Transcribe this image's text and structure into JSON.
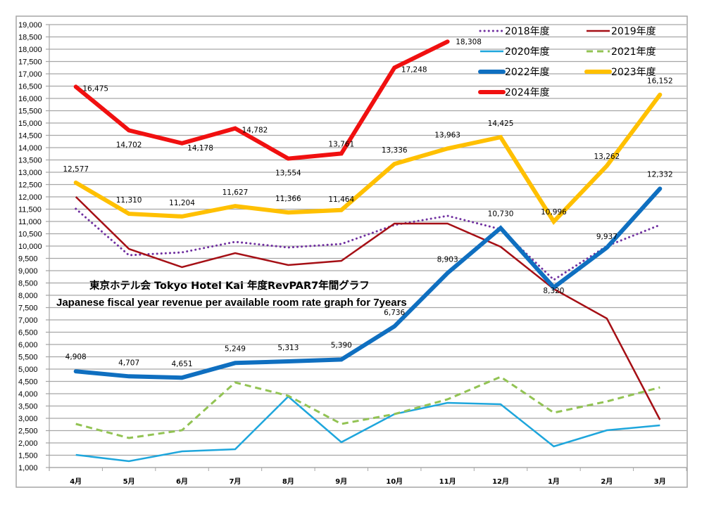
{
  "chart_data": {
    "type": "line",
    "title": "東京ホテル会 Tokyo Hotel Kai  年度RevPAR7年間グラフ",
    "subtitle": "Japanese fiscal year revenue per available room rate graph for 7years",
    "xlabel": "",
    "ylabel": "",
    "ylim": [
      1000,
      19000
    ],
    "ytick_step": 500,
    "yticks": [
      "1,000",
      "1,500",
      "2,000",
      "2,500",
      "3,000",
      "3,500",
      "4,000",
      "4,500",
      "5,000",
      "5,500",
      "6,000",
      "6,500",
      "7,000",
      "7,500",
      "8,000",
      "8,500",
      "9,000",
      "9,500",
      "10,000",
      "10,500",
      "11,000",
      "11,500",
      "12,000",
      "12,500",
      "13,000",
      "13,500",
      "14,000",
      "14,500",
      "15,000",
      "15,500",
      "16,000",
      "16,500",
      "17,000",
      "17,500",
      "18,000",
      "18,500",
      "19,000"
    ],
    "grid": true,
    "legend_position": "top-right",
    "categories": [
      "4月",
      "5月",
      "6月",
      "7月",
      "8月",
      "9月",
      "10月",
      "11月",
      "12月",
      "1月",
      "2月",
      "3月"
    ],
    "series": [
      {
        "name": "2018年度",
        "color": "#7030a0",
        "style": "dotted",
        "weight": "thin",
        "values": [
          11514,
          9629,
          9743,
          10171,
          9943,
          10086,
          10857,
          11229,
          10686,
          8629,
          10000,
          10857
        ],
        "labels": null
      },
      {
        "name": "2019年度",
        "color": "#a50f15",
        "style": "solid",
        "weight": "thin",
        "values": [
          12000,
          9886,
          9143,
          9714,
          9229,
          9400,
          10914,
          10914,
          9971,
          8257,
          7057,
          2943
        ],
        "labels": null
      },
      {
        "name": "2020年度",
        "color": "#1ea6dc",
        "style": "solid",
        "weight": "thin",
        "values": [
          1514,
          1257,
          1657,
          1743,
          3886,
          2029,
          3171,
          3629,
          3571,
          1857,
          2514,
          2714
        ],
        "labels": null
      },
      {
        "name": "2021年度",
        "color": "#92c353",
        "style": "dashed",
        "weight": "thin",
        "values": [
          2771,
          2200,
          2514,
          4457,
          3914,
          2771,
          3171,
          3771,
          4686,
          3229,
          3686,
          4257
        ],
        "labels": null
      },
      {
        "name": "2022年度",
        "color": "#0f6fc0",
        "style": "solid",
        "weight": "thick",
        "values": [
          4908,
          4707,
          4651,
          5249,
          5313,
          5390,
          6736,
          8903,
          10730,
          8320,
          9937,
          12332
        ],
        "labels": [
          "4,908",
          "4,707",
          "4,651",
          "5,249",
          "5,313",
          "5,390",
          "6,736",
          "8,903",
          "10,730",
          "8,320",
          "9,937",
          "12,332"
        ]
      },
      {
        "name": "2023年度",
        "color": "#ffc000",
        "style": "solid",
        "weight": "thick",
        "values": [
          12577,
          11310,
          11204,
          11627,
          11366,
          11464,
          13336,
          13963,
          14425,
          10996,
          13262,
          16152
        ],
        "labels": [
          "12,577",
          "11,310",
          "11,204",
          "11,627",
          "11,366",
          "11,464",
          "13,336",
          "13,963",
          "14,425",
          "10,996",
          "13,262",
          "16,152"
        ]
      },
      {
        "name": "2024年度",
        "color": "#f01010",
        "style": "solid",
        "weight": "thick",
        "values": [
          16475,
          14702,
          14178,
          14782,
          13554,
          13761,
          17248,
          18308,
          null,
          null,
          null,
          null
        ],
        "labels": [
          "16,475",
          "14,702",
          "14,178",
          "14,782",
          "13,554",
          "13,761",
          "17,248",
          "18,308",
          null,
          null,
          null,
          null
        ]
      }
    ]
  }
}
